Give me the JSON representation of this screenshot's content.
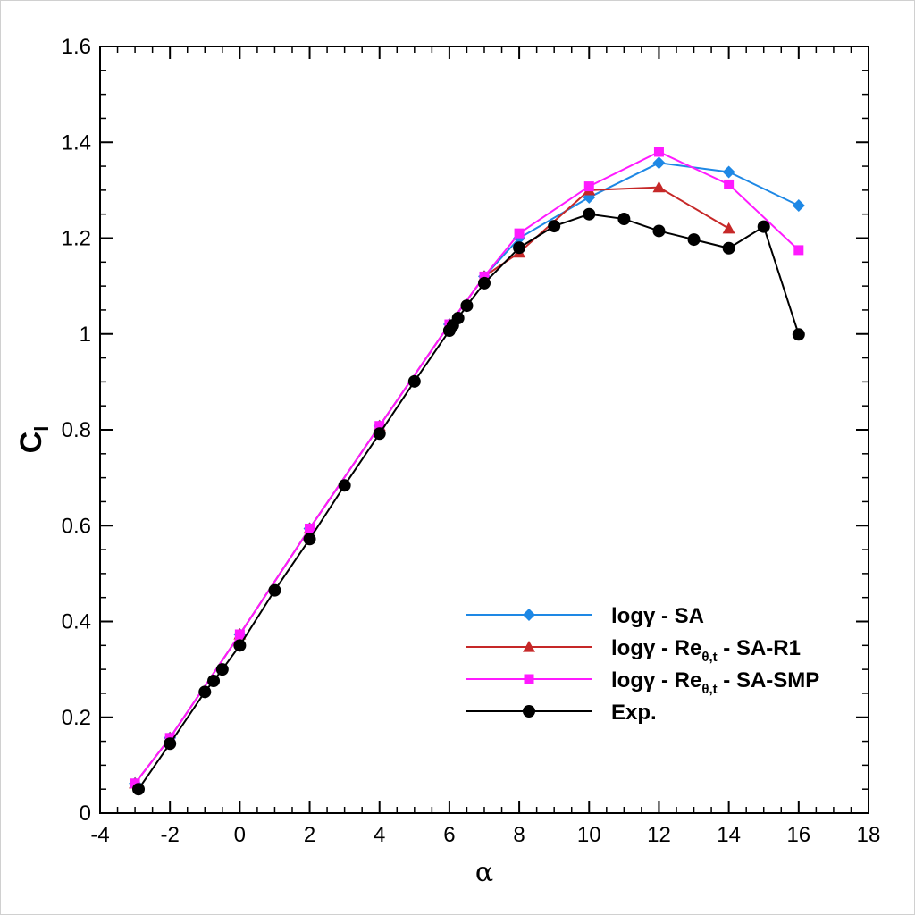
{
  "chart_data": {
    "type": "line",
    "title": "",
    "xlabel": "α",
    "ylabel": {
      "main": "C",
      "sub": "l"
    },
    "xlim": [
      -4,
      18
    ],
    "ylim": [
      0,
      1.6
    ],
    "xticks": [
      "-4",
      "-2",
      "0",
      "2",
      "4",
      "6",
      "8",
      "10",
      "12",
      "14",
      "16",
      "18"
    ],
    "yticks": [
      "0",
      "0.2",
      "0.4",
      "0.6",
      "0.8",
      "1",
      "1.2",
      "1.4",
      "1.6"
    ],
    "legend_position": "bottom-right",
    "series": [
      {
        "name": "logγ - SA",
        "legend": {
          "main": "logγ - SA",
          "sub": "",
          "tail": ""
        },
        "color": "#1e88e5",
        "marker": "diamond",
        "x": [
          -3,
          -2,
          0,
          2,
          4,
          6,
          7,
          8,
          10,
          12,
          14,
          16
        ],
        "y": [
          0.062,
          0.157,
          0.373,
          0.594,
          0.808,
          1.02,
          1.12,
          1.2,
          1.285,
          1.357,
          1.338,
          1.268
        ]
      },
      {
        "name": "logγ - Reθ,t - SA-R1",
        "legend": {
          "main": "logγ - Re",
          "sub": "θ,t",
          "tail": " - SA-R1"
        },
        "color": "#c62828",
        "marker": "triangle",
        "x": [
          -3,
          -2,
          0,
          2,
          4,
          6,
          7,
          8,
          10,
          12,
          14
        ],
        "y": [
          0.062,
          0.157,
          0.373,
          0.594,
          0.808,
          1.02,
          1.12,
          1.17,
          1.3,
          1.306,
          1.22
        ]
      },
      {
        "name": "logγ - Reθ,t - SA-SMP",
        "legend": {
          "main": "logγ - Re",
          "sub": "θ,t",
          "tail": " - SA-SMP"
        },
        "color": "#ff1aff",
        "marker": "square",
        "x": [
          -3,
          -2,
          0,
          2,
          4,
          6,
          7,
          8,
          10,
          12,
          14,
          16
        ],
        "y": [
          0.062,
          0.157,
          0.373,
          0.594,
          0.808,
          1.02,
          1.12,
          1.21,
          1.308,
          1.38,
          1.312,
          1.175
        ]
      },
      {
        "name": "Exp.",
        "legend": {
          "main": "Exp.",
          "sub": "",
          "tail": ""
        },
        "color": "#000000",
        "marker": "circle",
        "x": [
          -2.9,
          -2,
          -1,
          -0.75,
          -0.5,
          0,
          1,
          2,
          3,
          4,
          5,
          6,
          6.1,
          6.25,
          6.5,
          7,
          8,
          9,
          10,
          11,
          12,
          13,
          14,
          15,
          16
        ],
        "y": [
          0.05,
          0.145,
          0.253,
          0.276,
          0.3,
          0.35,
          0.465,
          0.572,
          0.684,
          0.792,
          0.901,
          1.007,
          1.018,
          1.033,
          1.059,
          1.106,
          1.18,
          1.225,
          1.25,
          1.24,
          1.215,
          1.197,
          1.179,
          1.224,
          0.999
        ]
      }
    ]
  }
}
